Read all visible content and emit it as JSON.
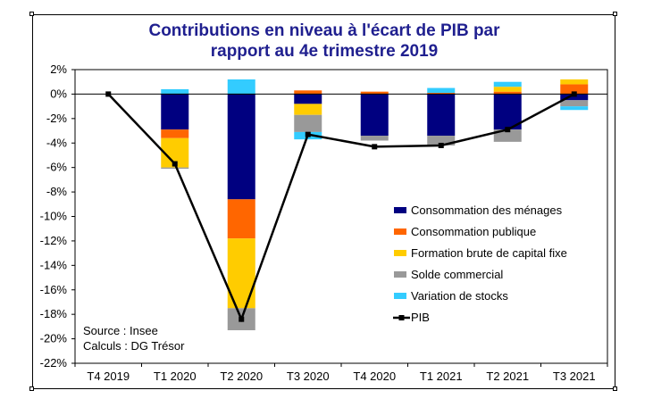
{
  "chart_data": {
    "type": "bar",
    "title_line1": "Contributions en niveau à l'écart de PIB par",
    "title_line2": "rapport au 4e trimestre 2019",
    "categories": [
      "T4 2019",
      "T1 2020",
      "T2 2020",
      "T3 2020",
      "T4 2020",
      "T1 2021",
      "T2 2021",
      "T3 2021"
    ],
    "ylim": [
      -22,
      2
    ],
    "y_ticks": [
      2,
      0,
      -2,
      -4,
      -6,
      -8,
      -10,
      -12,
      -14,
      -16,
      -18,
      -20,
      -22
    ],
    "series": [
      {
        "name": "Consommation des ménages",
        "color": "#000080",
        "values": [
          0,
          -2.9,
          -8.6,
          -0.8,
          -3.4,
          -3.4,
          -2.9,
          -0.5
        ]
      },
      {
        "name": "Consommation publique",
        "color": "#ff6600",
        "values": [
          0,
          -0.7,
          -3.2,
          0.3,
          0.2,
          0.1,
          0.2,
          0.8
        ]
      },
      {
        "name": "Formation brute de capital fixe",
        "color": "#ffcc00",
        "values": [
          0,
          -2.4,
          -5.7,
          -0.9,
          0,
          0,
          0.4,
          0.4
        ]
      },
      {
        "name": "Solde commercial",
        "color": "#999999",
        "values": [
          0,
          -0.1,
          -1.8,
          -1.4,
          -0.4,
          -0.8,
          -1.0,
          -0.5
        ]
      },
      {
        "name": "Variation de stocks",
        "color": "#33ccff",
        "values": [
          0,
          0.4,
          1.2,
          -0.6,
          0,
          0.4,
          0.4,
          -0.3
        ]
      }
    ],
    "line": {
      "name": "PIB",
      "color": "#000000",
      "values": [
        0,
        -5.7,
        -18.4,
        -3.3,
        -4.3,
        -4.2,
        -2.9,
        0
      ]
    },
    "source_line1": "Source : Insee",
    "source_line2": "Calculs : DG Trésor"
  }
}
